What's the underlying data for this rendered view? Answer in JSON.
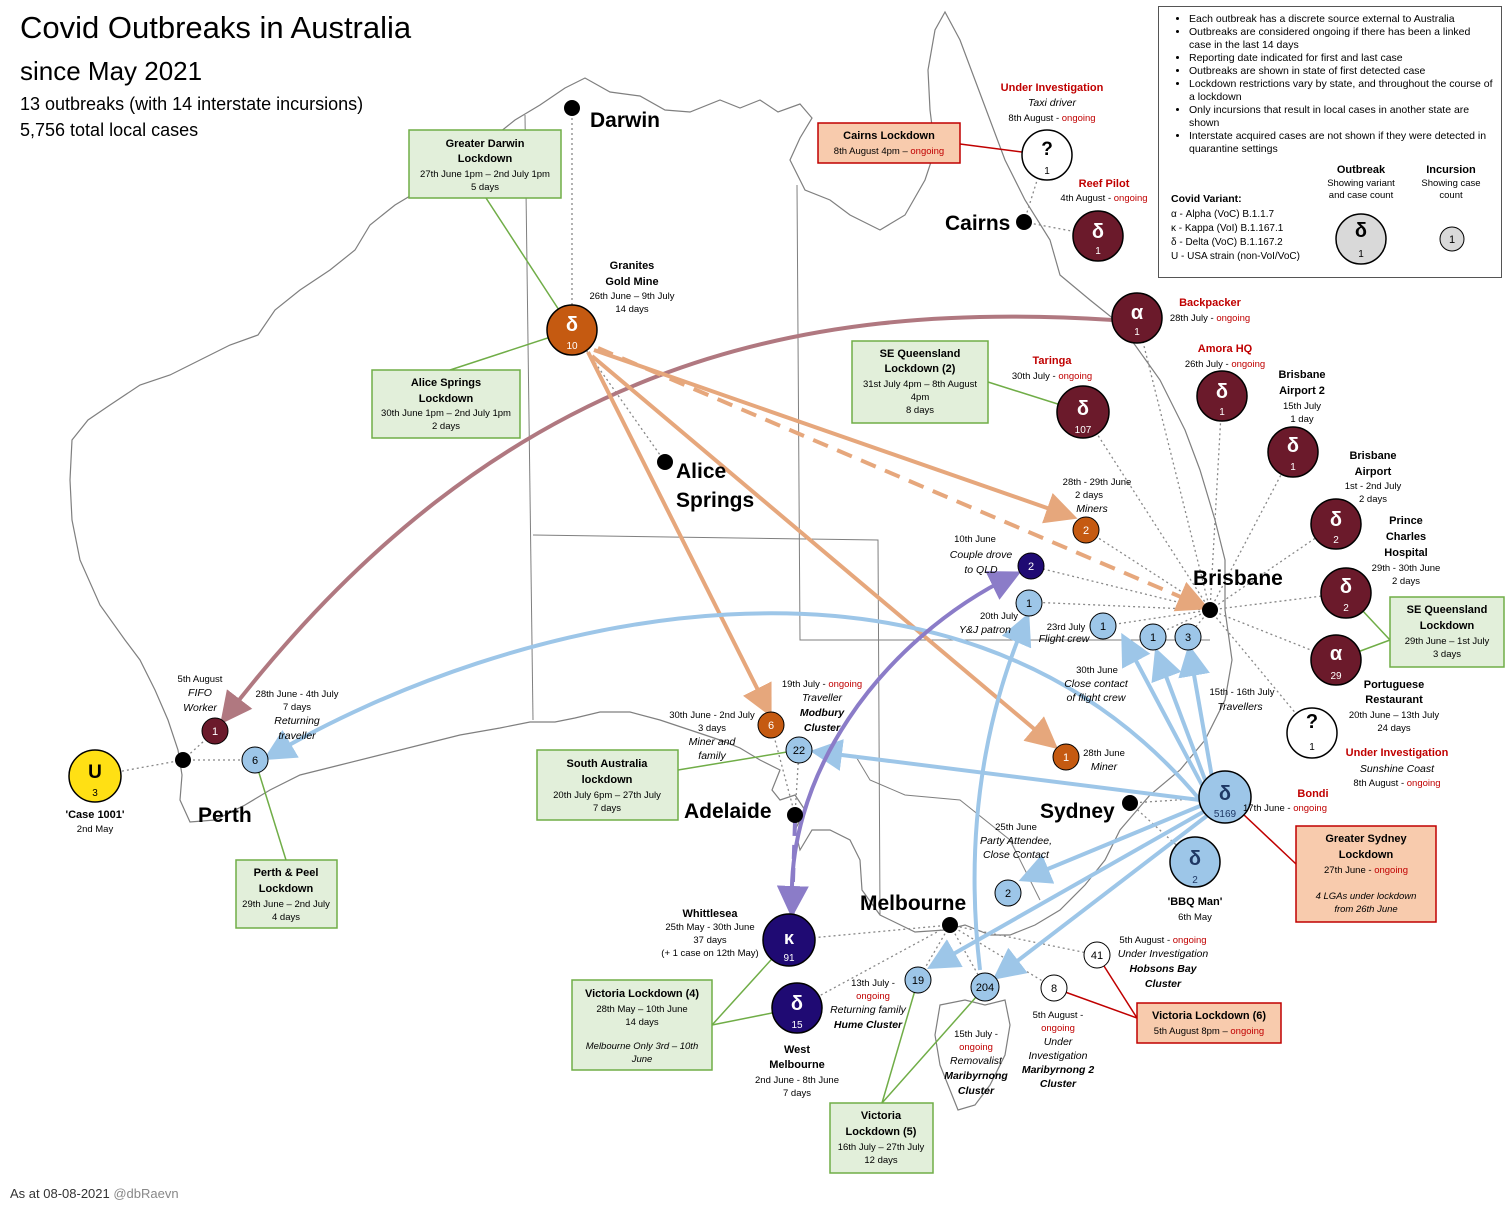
{
  "header": {
    "title": "Covid Outbreaks in Australia",
    "subtitle": "since May 2021",
    "stat1": "13 outbreaks (with 14 interstate incursions)",
    "stat2": "5,756 total local cases"
  },
  "footer": {
    "date": "As at 08-08-2021",
    "handle": "@dbRaevn"
  },
  "info": {
    "notes": [
      "Each outbreak has a discrete source external to Australia",
      "Outbreaks are considered ongoing if there has been a linked case in the last 14 days",
      "Reporting date indicated for first and last case",
      "Outbreaks are shown in state of first detected case",
      "Lockdown restrictions vary by state, and throughout the course of a lockdown",
      "Only incursions that result in local cases in another state are shown",
      "Interstate acquired cases are not shown if they were detected in quarantine settings"
    ],
    "variant_title": "Covid Variant:",
    "variants": [
      "α - Alpha (VoC) B.1.1.7",
      "κ - Kappa (VoI) B.1.167.1",
      "δ - Delta (VoC) B.1.167.2",
      "U - USA strain (non-VoI/VoC)"
    ],
    "legend_outbreak": {
      "title": "Outbreak",
      "sub": "Showing variant and case count",
      "glyph": "δ",
      "count": "1"
    },
    "legend_incursion": {
      "title": "Incursion",
      "sub": "Showing case count",
      "count": "1"
    }
  },
  "colors": {
    "delta_nsw": "#9dc6e8",
    "delta_qld": "#6b1a2b",
    "delta_nt": "#c55a11",
    "kappa_vic": "#1f0a73",
    "alpha_arrow": "#b07880",
    "nt_arrow": "#e6a77c",
    "nsw_arrow": "#9dc6e8",
    "vic_arrow": "#8b7cc8",
    "green_box": "#e2efda",
    "red_box": "#f8cbad",
    "ongoing": "#c00000"
  },
  "cities": [
    "Darwin",
    "Cairns",
    "Alice Springs",
    "Brisbane",
    "Perth",
    "Adelaide",
    "Sydney",
    "Melbourne"
  ],
  "outbreaks": [
    {
      "glyph": "δ",
      "count": "10",
      "name": "Granites Gold Mine",
      "dates": "26th June – 9th July",
      "duration": "14 days"
    },
    {
      "glyph": "δ",
      "count": "5169",
      "name": "Bondi",
      "dates": "17th June -",
      "status": "ongoing"
    },
    {
      "glyph": "κ",
      "count": "91",
      "name": "Whittlesea",
      "dates": "25th May - 30th June",
      "duration": "37 days",
      "note": "(+ 1 case on 12th May)"
    },
    {
      "glyph": "δ",
      "count": "15",
      "name": "West Melbourne",
      "dates": "2nd June - 8th June",
      "duration": "7 days"
    },
    {
      "glyph": "U",
      "count": "3",
      "name": "'Case 1001'",
      "dates": "2nd May"
    },
    {
      "glyph": "δ",
      "count": "2",
      "name": "'BBQ Man'",
      "dates": "6th May"
    },
    {
      "glyph": "?",
      "count": "1",
      "name": "Under Investigation",
      "sub": "Taxi driver",
      "dates": "8th August -",
      "status": "ongoing"
    },
    {
      "glyph": "δ",
      "count": "1",
      "name": "Reef Pilot",
      "dates": "4th August -",
      "status": "ongoing"
    },
    {
      "glyph": "α",
      "count": "1",
      "name": "Backpacker",
      "dates": "28th July -",
      "status": "ongoing"
    },
    {
      "glyph": "δ",
      "count": "107",
      "name": "Taringa",
      "dates": "30th July -",
      "status": "ongoing"
    },
    {
      "glyph": "δ",
      "count": "1",
      "name": "Amora HQ",
      "dates": "26th July -",
      "status": "ongoing"
    },
    {
      "glyph": "δ",
      "count": "1",
      "name": "Brisbane Airport 2",
      "dates": "15th July",
      "duration": "1 day"
    },
    {
      "glyph": "δ",
      "count": "2",
      "name": "Brisbane Airport",
      "dates": "1st - 2nd July",
      "duration": "2 days"
    },
    {
      "glyph": "δ",
      "count": "2",
      "name": "Prince Charles Hospital",
      "dates": "29th - 30th June",
      "duration": "2 days"
    },
    {
      "glyph": "α",
      "count": "29",
      "name": "Portuguese Restaurant",
      "dates": "20th June – 13th July",
      "duration": "24 days"
    },
    {
      "glyph": "?",
      "count": "1",
      "name": "Under Investigation",
      "sub": "Sunshine Coast",
      "dates": "8th August -",
      "status": "ongoing"
    }
  ],
  "incursions": [
    {
      "count": "1",
      "dates": "5th August",
      "label": "FIFO Worker"
    },
    {
      "count": "6",
      "dates": "28th June - 4th July",
      "duration": "7 days",
      "label": "Returning traveller"
    },
    {
      "count": "6",
      "dates": "30th June - 2nd July",
      "duration": "3 days",
      "label": "Miner and family"
    },
    {
      "count": "22",
      "dates": "19th July -",
      "status": "ongoing",
      "label": "Traveller",
      "cluster": "Modbury Cluster"
    },
    {
      "count": "2",
      "dates": "28th - 29th June",
      "duration": "2 days",
      "label": "Miners"
    },
    {
      "count": "2",
      "dates": "10th June",
      "label": "Couple drove to QLD"
    },
    {
      "count": "1",
      "dates": "20th July",
      "label": "Y&J patron"
    },
    {
      "count": "1",
      "dates": "23rd July",
      "label": "Flight crew"
    },
    {
      "count": "1",
      "dates": "30th June",
      "label": "Close contact of flight crew"
    },
    {
      "count": "3",
      "dates": "15th - 16th July",
      "label": "Travellers"
    },
    {
      "count": "1",
      "dates": "28th June",
      "label": "Miner"
    },
    {
      "count": "2",
      "dates": "25th June",
      "label": "Party Attendee, Close Contact"
    },
    {
      "count": "19",
      "dates": "13th July -",
      "status": "ongoing",
      "label": "Returning family",
      "cluster": "Hume Cluster"
    },
    {
      "count": "204",
      "dates": "15th July -",
      "status": "ongoing",
      "label": "Removalist",
      "cluster": "Maribyrnong Cluster"
    },
    {
      "count": "8",
      "dates": "5th August -",
      "status": "ongoing",
      "label": "Under Investigation",
      "cluster": "Maribyrnong 2 Cluster"
    },
    {
      "count": "41",
      "dates": "5th August -",
      "status": "ongoing",
      "label": "Under Investigation",
      "cluster": "Hobsons Bay Cluster"
    }
  ],
  "lockdowns": [
    {
      "title": "Greater Darwin Lockdown",
      "dates": "27th June 1pm – 2nd July 1pm",
      "duration": "5 days"
    },
    {
      "title": "Alice Springs Lockdown",
      "dates": "30th June 1pm – 2nd July 1pm",
      "duration": "2 days"
    },
    {
      "title": "Cairns Lockdown",
      "dates": "8th August 4pm –",
      "status": "ongoing"
    },
    {
      "title": "SE Queensland Lockdown (2)",
      "dates": "31st July 4pm – 8th August 4pm",
      "duration": "8 days"
    },
    {
      "title": "SE Queensland Lockdown",
      "dates": "29th June – 1st July",
      "duration": "3 days"
    },
    {
      "title": "Greater Sydney Lockdown",
      "dates": "27th June -",
      "status": "ongoing",
      "note": "4 LGAs under lockdown from 26th June"
    },
    {
      "title": "South Australia lockdown",
      "dates": "20th July 6pm – 27th July",
      "duration": "7 days"
    },
    {
      "title": "Perth & Peel Lockdown",
      "dates": "29th June – 2nd July",
      "duration": "4 days"
    },
    {
      "title": "Victoria Lockdown (4)",
      "dates": "28th May – 10th June",
      "duration": "14 days",
      "note": "Melbourne Only 3rd – 10th June"
    },
    {
      "title": "Victoria Lockdown (5)",
      "dates": "16th July – 27th July",
      "duration": "12 days"
    },
    {
      "title": "Victoria Lockdown (6)",
      "dates": "5th August 8pm –",
      "status": "ongoing"
    }
  ]
}
